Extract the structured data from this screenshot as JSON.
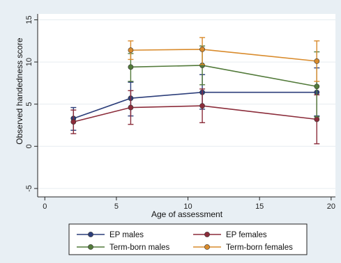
{
  "chart_data": {
    "type": "line",
    "title": "",
    "xlabel": "Age of assessment",
    "ylabel": "Observed handedness score",
    "xlim": [
      -0.5,
      20.3
    ],
    "ylim": [
      -6.0,
      15.7
    ],
    "xticks": [
      0,
      5,
      10,
      15,
      20
    ],
    "yticks": [
      -5,
      0,
      5,
      10,
      15
    ],
    "grid": "horizontal",
    "legend_position": "bottom",
    "series": [
      {
        "name": "EP males",
        "color": "#2c3e7a",
        "x": [
          2,
          6,
          11,
          19
        ],
        "y": [
          3.3,
          5.7,
          6.4,
          6.4
        ],
        "lower": [
          1.9,
          3.6,
          4.4,
          3.6
        ],
        "upper": [
          4.6,
          7.6,
          8.5,
          9.3
        ]
      },
      {
        "name": "EP females",
        "color": "#8b2c3a",
        "x": [
          2,
          6,
          11,
          19
        ],
        "y": [
          2.9,
          4.6,
          4.8,
          3.2
        ],
        "lower": [
          1.5,
          2.6,
          2.8,
          0.3
        ],
        "upper": [
          4.3,
          6.6,
          6.8,
          6.1
        ]
      },
      {
        "name": "Term-born males",
        "color": "#527a3a",
        "x": [
          6,
          11,
          19
        ],
        "y": [
          9.4,
          9.6,
          7.1
        ],
        "lower": [
          7.7,
          7.3,
          3.5
        ],
        "upper": [
          11.0,
          11.9,
          11.2
        ]
      },
      {
        "name": "Term-born females",
        "color": "#d98b2c",
        "x": [
          6,
          11,
          19
        ],
        "y": [
          11.4,
          11.5,
          10.1
        ],
        "lower": [
          10.3,
          9.7,
          7.7
        ],
        "upper": [
          12.5,
          12.9,
          12.5
        ]
      }
    ]
  }
}
